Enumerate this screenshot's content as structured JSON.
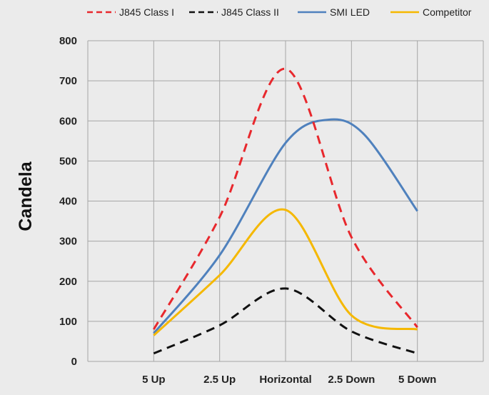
{
  "chart_data": {
    "type": "line",
    "title": "",
    "xlabel": "",
    "ylabel": "Candela",
    "categories": [
      "",
      "5 Up",
      "2.5 Up",
      "Horizontal",
      "2.5 Down",
      "5 Down"
    ],
    "ylim": [
      0,
      800
    ],
    "yticks": [
      0,
      100,
      200,
      300,
      400,
      500,
      600,
      700,
      800
    ],
    "grid": true,
    "smooth": true,
    "legend_position": "top",
    "series": [
      {
        "name": "J845 Class I",
        "style": "dashed",
        "color": "#e8282d",
        "x": [
          1,
          2,
          3,
          4,
          5
        ],
        "values": [
          80,
          360,
          730,
          310,
          85
        ]
      },
      {
        "name": "J845 Class II",
        "style": "dashed",
        "color": "#111111",
        "x": [
          1,
          2,
          3,
          4,
          5
        ],
        "values": [
          20,
          90,
          182,
          75,
          20
        ]
      },
      {
        "name": "SMI LED",
        "style": "solid",
        "color": "#4f81bd",
        "x": [
          1,
          2,
          3,
          3.65,
          4.2,
          5
        ],
        "values": [
          70,
          265,
          545,
          603,
          565,
          375
        ]
      },
      {
        "name": "Competitor",
        "style": "solid",
        "color": "#f5b800",
        "x": [
          1,
          2,
          3,
          4,
          5
        ],
        "values": [
          65,
          215,
          378,
          115,
          80
        ]
      }
    ]
  }
}
